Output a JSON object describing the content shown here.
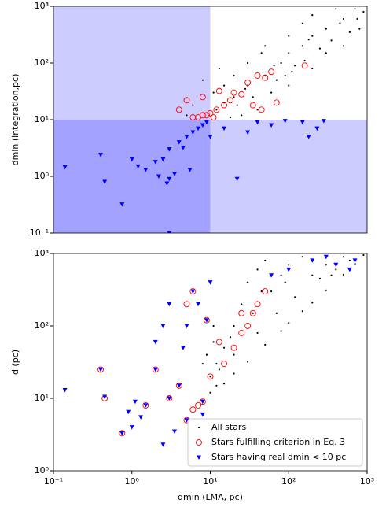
{
  "chart_data": [
    {
      "type": "scatter",
      "ylabel": "dmin (integration,pc)",
      "xscale": "log",
      "yscale": "log",
      "xlim": [
        0.1,
        1000
      ],
      "ylim": [
        0.1,
        1000
      ],
      "threshold": 10,
      "shade_color": "#0000ff",
      "yticks": [
        {
          "value": 0.1,
          "label": "10⁻¹"
        },
        {
          "value": 1,
          "label": "10⁰"
        },
        {
          "value": 10,
          "label": "10¹"
        },
        {
          "value": 100,
          "label": "10²"
        },
        {
          "value": 1000,
          "label": "10³"
        }
      ],
      "series": [
        {
          "name": "All stars",
          "color": "#000000",
          "marker": "dot",
          "x": [
            12,
            15,
            20,
            30,
            50,
            80,
            100,
            150,
            200,
            300,
            500,
            700,
            20,
            30,
            50,
            15,
            100,
            200,
            300,
            500,
            800,
            60,
            40,
            100,
            200,
            400,
            150,
            25,
            18,
            35,
            70,
            120,
            250,
            600,
            900,
            11,
            13,
            8,
            6,
            5,
            45,
            90,
            350,
            160,
            22,
            28,
            65,
            110,
            180,
            450,
            750
          ],
          "y": [
            15,
            20,
            25,
            40,
            60,
            100,
            150,
            200,
            300,
            400,
            600,
            900,
            60,
            100,
            200,
            40,
            40,
            80,
            150,
            200,
            400,
            30,
            15,
            300,
            700,
            900,
            500,
            12,
            11,
            25,
            50,
            90,
            180,
            350,
            800,
            30,
            80,
            50,
            18,
            12,
            150,
            60,
            250,
            110,
            18,
            35,
            90,
            70,
            260,
            500,
            600
          ]
        },
        {
          "name": "Stars fulfilling criterion in Eq. 3",
          "color": "#ff0000",
          "marker": "circle",
          "x": [
            7,
            8,
            9,
            10,
            12,
            15,
            18,
            20,
            25,
            30,
            40,
            50,
            60,
            8,
            5,
            13,
            35,
            45,
            160,
            70,
            4,
            6,
            11
          ],
          "y": [
            11,
            12,
            12,
            13,
            15,
            18,
            22,
            30,
            28,
            45,
            60,
            55,
            70,
            25,
            22,
            32,
            18,
            15,
            90,
            20,
            15,
            11,
            11
          ]
        },
        {
          "name": "Stars having real dmin < 10 pc",
          "color": "#0000ff",
          "marker": "triangle",
          "x": [
            3,
            4,
            5,
            6,
            7,
            8,
            9,
            2.5,
            2,
            1.5,
            0.45,
            0.4,
            0.14,
            0.75,
            1.0,
            1.2,
            3,
            2.8,
            5.5,
            22,
            30,
            60,
            90,
            150,
            180,
            230,
            280,
            4.5,
            3.5,
            2.2,
            3,
            10,
            15,
            40
          ],
          "y": [
            3,
            4,
            5,
            6,
            7,
            8,
            9,
            2,
            1.8,
            1.3,
            0.8,
            2.4,
            1.45,
            0.32,
            2.0,
            1.5,
            0.9,
            0.75,
            1.3,
            0.9,
            6,
            8,
            9.5,
            9,
            5,
            7,
            9.5,
            3.2,
            1.1,
            1.0,
            0.1,
            5,
            7,
            9
          ]
        }
      ]
    },
    {
      "type": "scatter",
      "xlabel": "dmin (LMA, pc)",
      "ylabel": "d (pc)",
      "xscale": "log",
      "yscale": "log",
      "xlim": [
        0.1,
        1000
      ],
      "ylim": [
        1,
        1000
      ],
      "legend": "lower right",
      "xticks": [
        {
          "value": 0.1,
          "label": "10⁻¹"
        },
        {
          "value": 1,
          "label": "10⁰"
        },
        {
          "value": 10,
          "label": "10¹"
        },
        {
          "value": 100,
          "label": "10²"
        },
        {
          "value": 1000,
          "label": "10³"
        }
      ],
      "yticks": [
        {
          "value": 1,
          "label": "10⁰"
        },
        {
          "value": 10,
          "label": "10¹"
        },
        {
          "value": 100,
          "label": "10²"
        },
        {
          "value": 1000,
          "label": "10³"
        }
      ],
      "series": [
        {
          "name": "All stars",
          "color": "#000000",
          "marker": "dot",
          "x": [
            10,
            15,
            20,
            30,
            50,
            80,
            100,
            150,
            200,
            300,
            500,
            700,
            900,
            12,
            15,
            20,
            25,
            30,
            40,
            50,
            60,
            80,
            100,
            150,
            200,
            300,
            20,
            40,
            70,
            120,
            250,
            400,
            10,
            12,
            13,
            18,
            35,
            45,
            90,
            11,
            9,
            8,
            11,
            600,
            500,
            350
          ],
          "y": [
            12,
            16,
            22,
            32,
            55,
            85,
            110,
            160,
            210,
            310,
            510,
            720,
            950,
            30,
            50,
            100,
            200,
            400,
            600,
            800,
            300,
            500,
            700,
            900,
            500,
            700,
            40,
            80,
            150,
            250,
            450,
            600,
            20,
            15,
            25,
            70,
            150,
            300,
            400,
            60,
            40,
            30,
            100,
            800,
            900,
            500
          ]
        },
        {
          "name": "Stars fulfilling criterion in Eq. 3",
          "color": "#ff0000",
          "marker": "circle",
          "x": [
            5,
            6,
            7,
            8,
            10,
            15,
            20,
            25,
            30,
            35,
            40,
            50,
            25,
            6,
            5,
            9,
            13,
            2,
            1.5,
            3,
            4,
            0.75,
            0.45,
            0.4
          ],
          "y": [
            5,
            7,
            8,
            9,
            20,
            30,
            50,
            80,
            100,
            150,
            200,
            300,
            150,
            300,
            200,
            120,
            60,
            25,
            8,
            10,
            15,
            3.3,
            10,
            25
          ]
        },
        {
          "name": "Stars having real dmin < 10 pc",
          "color": "#0000ff",
          "marker": "triangle",
          "x": [
            0.14,
            0.4,
            0.45,
            0.75,
            0.9,
            1,
            1.1,
            1.3,
            1.5,
            2,
            2.5,
            2,
            3,
            3,
            4,
            4.5,
            5,
            6,
            7,
            8,
            9,
            10,
            2.5,
            3.5,
            5,
            8,
            60,
            100,
            200,
            400,
            700,
            600,
            300
          ],
          "y": [
            13,
            25,
            10.5,
            3.3,
            6.5,
            4,
            9,
            5.5,
            8,
            25,
            100,
            60,
            10,
            200,
            15,
            50,
            100,
            300,
            200,
            9,
            120,
            400,
            2.3,
            3.5,
            5,
            6,
            500,
            600,
            800,
            700,
            800,
            600,
            900
          ]
        }
      ]
    }
  ]
}
